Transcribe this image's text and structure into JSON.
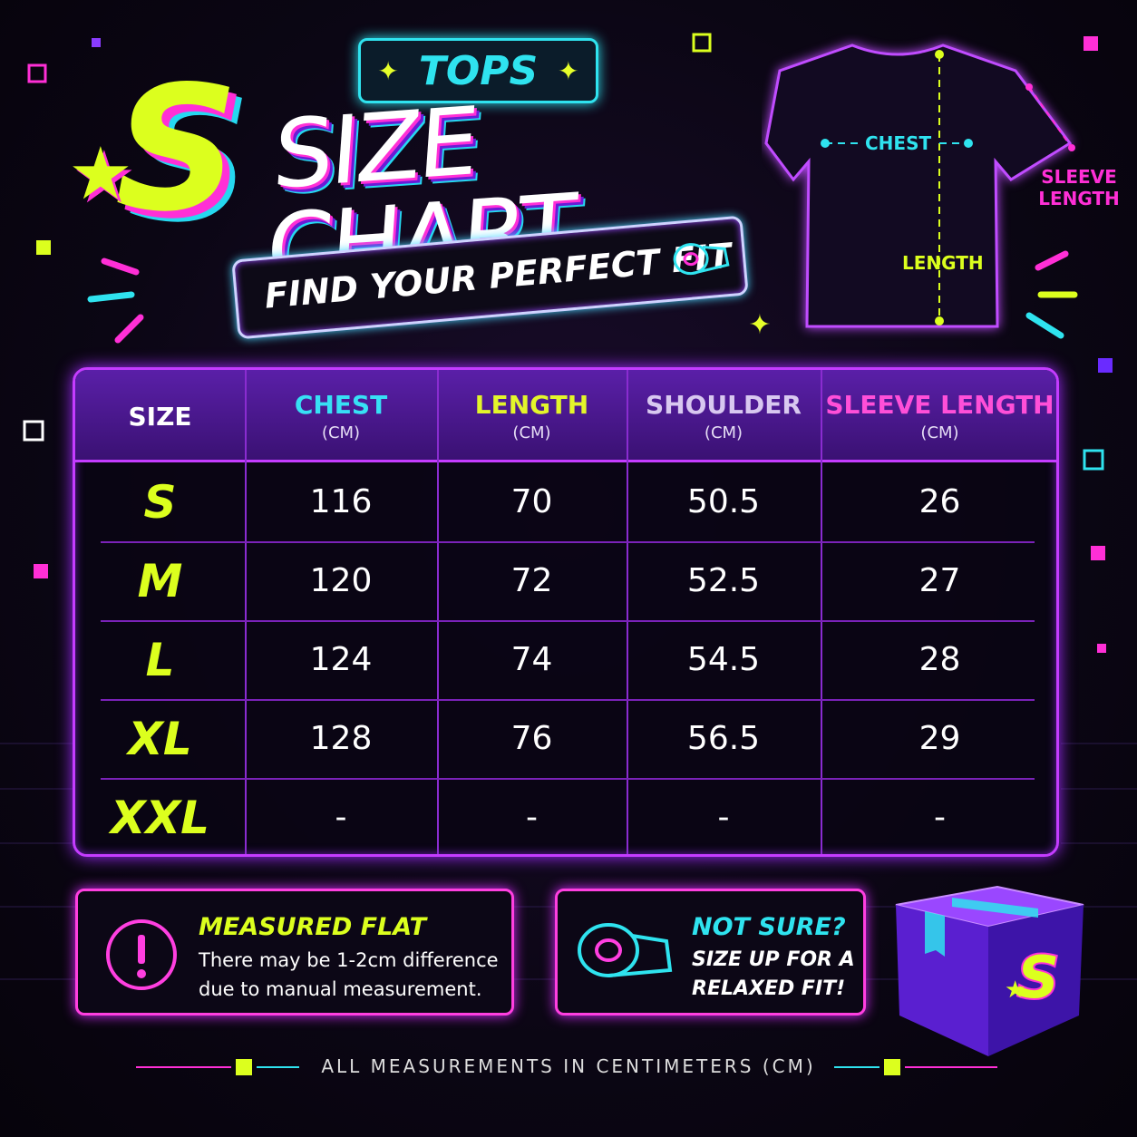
{
  "header": {
    "badge": "TOPS",
    "logo": "S",
    "title": "SIZE CHART",
    "subtitle": "FIND YOUR PERFECT FIT"
  },
  "diagram": {
    "chest": "CHEST",
    "length": "LENGTH",
    "sleeve": "SLEEVE LENGTH"
  },
  "table": {
    "columns": [
      {
        "name": "SIZE"
      },
      {
        "name": "CHEST",
        "unit": "(CM)"
      },
      {
        "name": "LENGTH",
        "unit": "(CM)"
      },
      {
        "name": "SHOULDER",
        "unit": "(CM)"
      },
      {
        "name": "SLEEVE LENGTH",
        "unit": "(CM)"
      }
    ],
    "rows": [
      [
        "S",
        "116",
        "70",
        "50.5",
        "26"
      ],
      [
        "M",
        "120",
        "72",
        "52.5",
        "27"
      ],
      [
        "L",
        "124",
        "74",
        "54.5",
        "28"
      ],
      [
        "XL",
        "128",
        "76",
        "56.5",
        "29"
      ],
      [
        "XXL",
        "-",
        "-",
        "-",
        "-"
      ]
    ]
  },
  "notes": [
    {
      "title": "MEASURED FLAT",
      "text": "There may be 1-2cm difference due to manual measurement."
    },
    {
      "title": "NOT SURE?",
      "text": "SIZE UP FOR A RELAXED FIT!"
    }
  ],
  "footer": "ALL MEASUREMENTS IN CENTIMETERS (CM)"
}
